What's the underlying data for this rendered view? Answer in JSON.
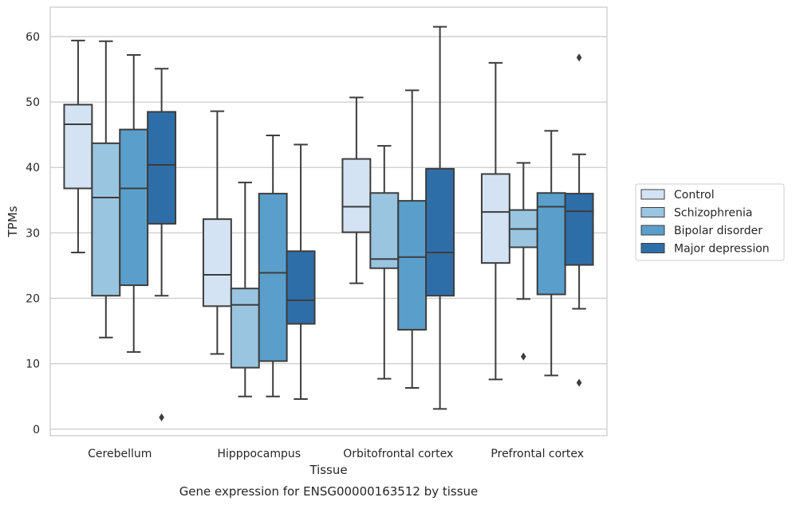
{
  "chart_data": {
    "type": "boxplot",
    "title": "",
    "caption": "Gene expression for ENSG00000163512 by tissue",
    "xlabel": "Tissue",
    "ylabel": "TPMs",
    "ylim": [
      -1,
      64.5
    ],
    "yticks": [
      0,
      10,
      20,
      30,
      40,
      50,
      60
    ],
    "grid": "horizontal",
    "legend_position": "right",
    "categories": [
      "Cerebellum",
      "Hipppocampus",
      "Orbitofrontal cortex",
      "Prefrontal cortex"
    ],
    "series": [
      {
        "name": "Control",
        "color": "#d3e3f3",
        "boxes": [
          {
            "whislo": 27.0,
            "q1": 36.8,
            "med": 46.6,
            "q3": 49.6,
            "whishi": 59.4,
            "fliers": []
          },
          {
            "whislo": 11.5,
            "q1": 18.8,
            "med": 23.6,
            "q3": 32.1,
            "whishi": 48.6,
            "fliers": []
          },
          {
            "whislo": 22.3,
            "q1": 30.1,
            "med": 34.0,
            "q3": 41.3,
            "whishi": 50.7,
            "fliers": []
          },
          {
            "whislo": 7.6,
            "q1": 25.4,
            "med": 33.2,
            "q3": 39.0,
            "whishi": 56.0,
            "fliers": []
          }
        ]
      },
      {
        "name": "Schizophrenia",
        "color": "#9ac5e0",
        "boxes": [
          {
            "whislo": 14.0,
            "q1": 20.4,
            "med": 35.4,
            "q3": 43.7,
            "whishi": 59.3,
            "fliers": []
          },
          {
            "whislo": 5.0,
            "q1": 9.4,
            "med": 19.0,
            "q3": 21.5,
            "whishi": 37.7,
            "fliers": []
          },
          {
            "whislo": 7.7,
            "q1": 24.6,
            "med": 26.0,
            "q3": 36.1,
            "whishi": 43.3,
            "fliers": []
          },
          {
            "whislo": 19.9,
            "q1": 27.8,
            "med": 30.6,
            "q3": 33.5,
            "whishi": 40.7,
            "fliers": [
              11.1
            ]
          }
        ]
      },
      {
        "name": "Bipolar disorder",
        "color": "#5a9fcc",
        "boxes": [
          {
            "whislo": 11.8,
            "q1": 22.0,
            "med": 36.8,
            "q3": 45.8,
            "whishi": 57.2,
            "fliers": []
          },
          {
            "whislo": 5.0,
            "q1": 10.4,
            "med": 23.9,
            "q3": 36.0,
            "whishi": 44.9,
            "fliers": []
          },
          {
            "whislo": 6.3,
            "q1": 15.2,
            "med": 26.3,
            "q3": 34.9,
            "whishi": 51.8,
            "fliers": []
          },
          {
            "whislo": 8.2,
            "q1": 20.6,
            "med": 34.0,
            "q3": 36.1,
            "whishi": 45.6,
            "fliers": []
          }
        ]
      },
      {
        "name": "Major depression",
        "color": "#2e6ea8",
        "boxes": [
          {
            "whislo": 20.4,
            "q1": 31.4,
            "med": 40.4,
            "q3": 48.5,
            "whishi": 55.1,
            "fliers": [
              1.8
            ]
          },
          {
            "whislo": 4.6,
            "q1": 16.1,
            "med": 19.7,
            "q3": 27.2,
            "whishi": 43.5,
            "fliers": []
          },
          {
            "whislo": 3.1,
            "q1": 20.4,
            "med": 27.0,
            "q3": 39.8,
            "whishi": 61.5,
            "fliers": []
          },
          {
            "whislo": 18.4,
            "q1": 25.1,
            "med": 33.3,
            "q3": 36.0,
            "whishi": 42.0,
            "fliers": [
              7.1,
              56.8
            ]
          }
        ]
      }
    ]
  }
}
